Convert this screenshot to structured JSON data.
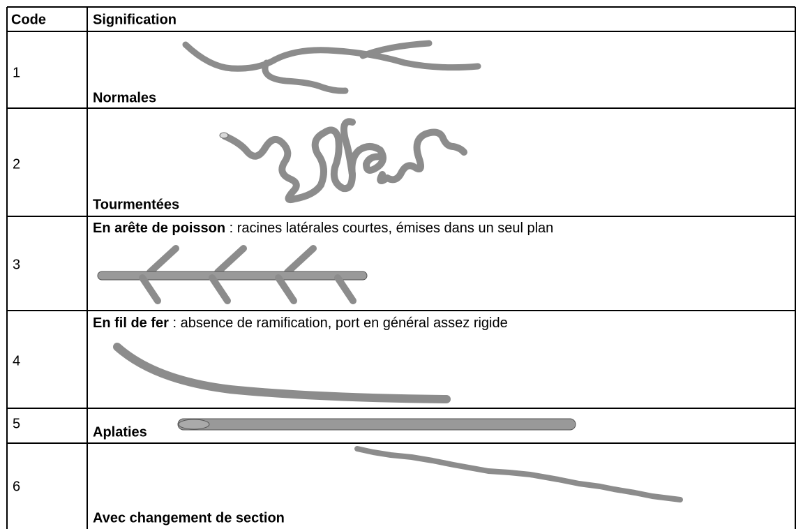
{
  "header": {
    "code": "Code",
    "signification": "Signification"
  },
  "rows": [
    {
      "code": "1",
      "label": "Normales"
    },
    {
      "code": "2",
      "label": "Tourmentées"
    },
    {
      "code": "3",
      "label": "En arête de poisson",
      "description": " : racines latérales courtes, émises dans un seul plan"
    },
    {
      "code": "4",
      "label": "En fil de fer",
      "description": " : absence de ramification, port en général assez rigide"
    },
    {
      "code": "5",
      "label": "Aplaties"
    },
    {
      "code": "6",
      "label": "Avec changement de section"
    }
  ]
}
